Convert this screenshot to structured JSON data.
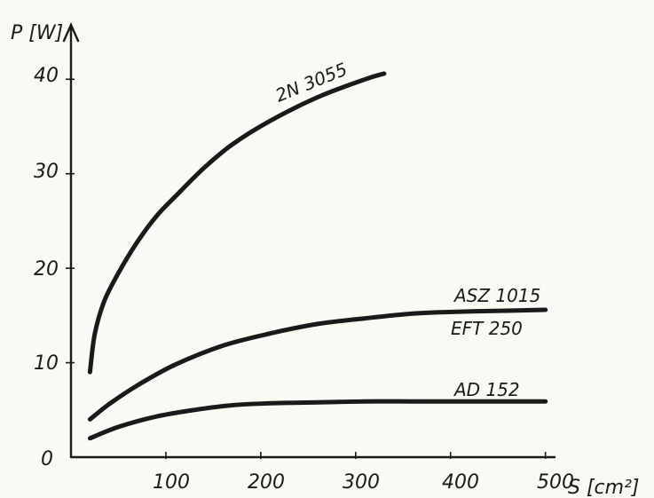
{
  "chart_data": {
    "type": "line",
    "xlabel": "S [cm²]",
    "ylabel": "P [W]",
    "xlim": [
      0,
      500
    ],
    "ylim": [
      0,
      42
    ],
    "x_ticks": [
      "100",
      "200",
      "300",
      "400",
      "500"
    ],
    "y_ticks": [
      "0",
      "10",
      "20",
      "30",
      "40"
    ],
    "grid": false,
    "series": [
      {
        "name": "2N 3055",
        "x": [
          10,
          15,
          25,
          40,
          60,
          80,
          100,
          130,
          160,
          200,
          250,
          300,
          320
        ],
        "y": [
          9,
          13,
          16.5,
          19.5,
          22.8,
          25.5,
          27.6,
          30.6,
          33.1,
          35.6,
          38.1,
          40.0,
          40.6
        ]
      },
      {
        "name": "ASZ 1015 / EFT 250",
        "x": [
          10,
          30,
          60,
          100,
          150,
          200,
          250,
          300,
          350,
          400,
          450,
          490
        ],
        "y": [
          4,
          5.6,
          7.6,
          9.8,
          11.8,
          13.1,
          14.1,
          14.7,
          15.2,
          15.4,
          15.5,
          15.6
        ]
      },
      {
        "name": "AD 152",
        "x": [
          10,
          40,
          80,
          120,
          160,
          200,
          250,
          300,
          350,
          400,
          450,
          490
        ],
        "y": [
          2,
          3.2,
          4.3,
          5.0,
          5.5,
          5.7,
          5.8,
          5.9,
          5.9,
          5.9,
          5.9,
          5.9
        ]
      }
    ],
    "annotations": {
      "label_2n3055": "2N 3055",
      "label_asz": "ASZ 1015",
      "label_eft": "EFT 250",
      "label_ad": "AD 152"
    }
  }
}
